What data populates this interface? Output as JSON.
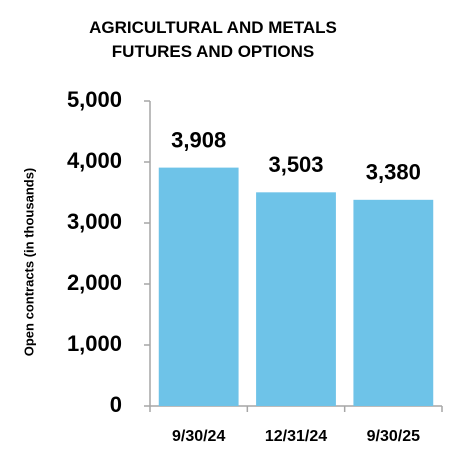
{
  "chart_data": {
    "type": "bar",
    "title": "AGRICULTURAL AND METALS FUTURES AND OPTIONS",
    "y_label": "Open contracts (in thousands)",
    "categories": [
      "9/30/24",
      "12/31/24",
      "9/30/25"
    ],
    "values": [
      3908,
      3503,
      3380
    ],
    "value_labels": [
      "3,908",
      "3,503",
      "3,380"
    ],
    "color": "#6ec3e8",
    "ylim": [
      0,
      5000
    ],
    "yticks": [
      0,
      {
        "value": 1000,
        "label": "1,000"
      },
      {
        "value": 2000,
        "label": "2,000"
      },
      {
        "value": 3000,
        "label": "3,000"
      },
      {
        "value": 4000,
        "label": "4,000"
      },
      {
        "value": 5000,
        "label": "5,000"
      }
    ],
    "grid": false
  }
}
